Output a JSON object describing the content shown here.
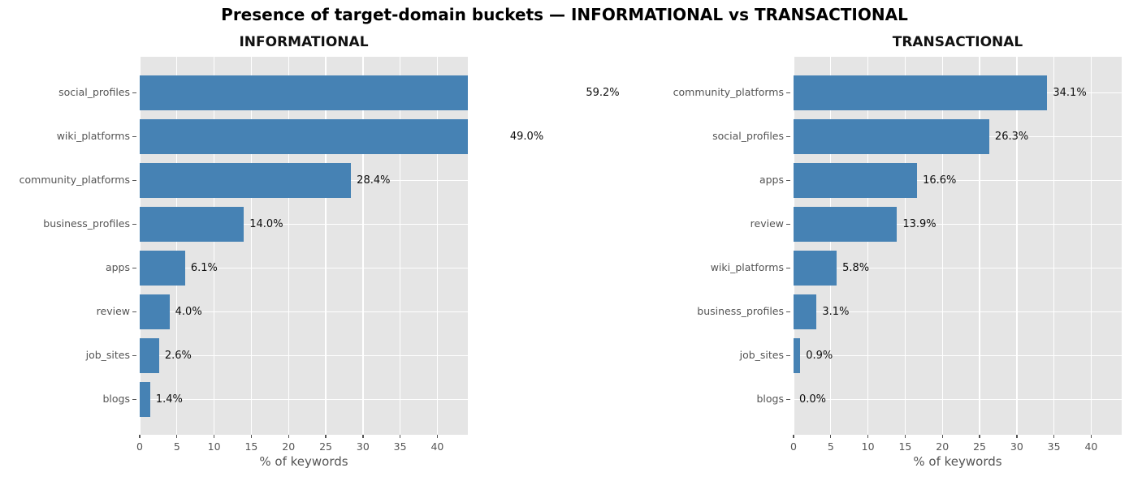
{
  "figure": {
    "title": "Presence of target-domain buckets — INFORMATIONAL vs TRANSACTIONAL"
  },
  "style": {
    "bar_color": "#4682b4",
    "plot_bg": "#e5e5e5",
    "grid_color": "#ffffff",
    "tick_color": "#555555",
    "category_label_color": "#545454",
    "value_label_color": "#0d0d0d"
  },
  "chart_data": [
    {
      "type": "bar",
      "orientation": "horizontal",
      "title": "INFORMATIONAL",
      "xlabel": "% of keywords",
      "xlim": [
        0,
        44.1
      ],
      "xticks": [
        0,
        5,
        10,
        15,
        20,
        25,
        30,
        35,
        40
      ],
      "grid": true,
      "categories": [
        "social_profiles",
        "wiki_platforms",
        "community_platforms",
        "business_profiles",
        "apps",
        "review",
        "job_sites",
        "blogs"
      ],
      "values": [
        59.2,
        49.0,
        28.4,
        14.0,
        6.1,
        4.0,
        2.6,
        1.4
      ],
      "value_labels": [
        "59.2%",
        "49.0%",
        "28.4%",
        "14.0%",
        "6.1%",
        "4.0%",
        "2.6%",
        "1.4%"
      ]
    },
    {
      "type": "bar",
      "orientation": "horizontal",
      "title": "TRANSACTIONAL",
      "xlabel": "% of keywords",
      "xlim": [
        0,
        44.1
      ],
      "xticks": [
        0,
        5,
        10,
        15,
        20,
        25,
        30,
        35,
        40
      ],
      "grid": true,
      "categories": [
        "community_platforms",
        "social_profiles",
        "apps",
        "review",
        "wiki_platforms",
        "business_profiles",
        "job_sites",
        "blogs"
      ],
      "values": [
        34.1,
        26.3,
        16.6,
        13.9,
        5.8,
        3.1,
        0.9,
        0.0
      ],
      "value_labels": [
        "34.1%",
        "26.3%",
        "16.6%",
        "13.9%",
        "5.8%",
        "3.1%",
        "0.9%",
        "0.0%"
      ]
    }
  ]
}
